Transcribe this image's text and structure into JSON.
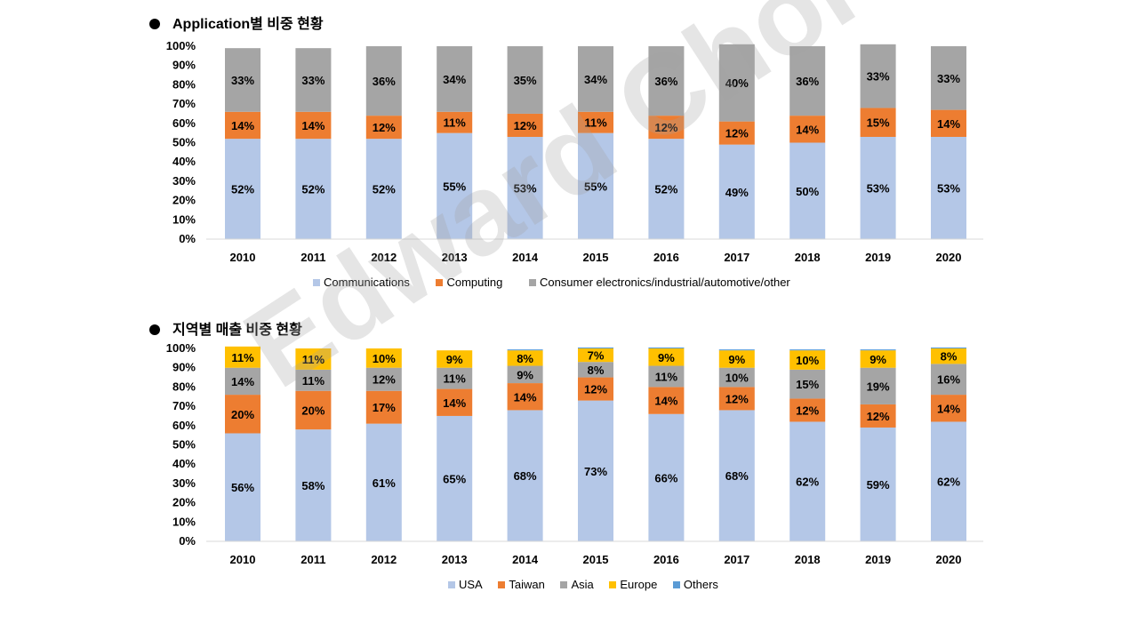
{
  "watermark": "Edward Choi",
  "colors": {
    "communications": "#b4c7e7",
    "computing": "#ed7d31",
    "consumer": "#a5a5a5",
    "usa": "#b4c7e7",
    "taiwan": "#ed7d31",
    "asia": "#a5a5a5",
    "europe": "#ffc000",
    "others": "#5b9bd5",
    "axis": "#d9d9d9",
    "text": "#000000"
  },
  "chart_data": [
    {
      "type": "bar",
      "stacked": true,
      "title": "Application별 비중 현황",
      "categories": [
        "2010",
        "2011",
        "2012",
        "2013",
        "2014",
        "2015",
        "2016",
        "2017",
        "2018",
        "2019",
        "2020"
      ],
      "ylim": [
        0,
        100
      ],
      "yticks": [
        "0%",
        "10%",
        "20%",
        "30%",
        "40%",
        "50%",
        "60%",
        "70%",
        "80%",
        "90%",
        "100%"
      ],
      "grid": false,
      "legend_position": "bottom",
      "series": [
        {
          "name": "Communications",
          "color_key": "communications",
          "values": [
            52,
            52,
            52,
            55,
            53,
            55,
            52,
            49,
            50,
            53,
            53
          ]
        },
        {
          "name": "Computing",
          "color_key": "computing",
          "values": [
            14,
            14,
            12,
            11,
            12,
            11,
            12,
            12,
            14,
            15,
            14
          ]
        },
        {
          "name": "Consumer electronics/industrial/automotive/other",
          "color_key": "consumer",
          "values": [
            33,
            33,
            36,
            34,
            35,
            34,
            36,
            40,
            36,
            33,
            33
          ]
        }
      ]
    },
    {
      "type": "bar",
      "stacked": true,
      "title": "지역별 매출 비중 현황",
      "categories": [
        "2010",
        "2011",
        "2012",
        "2013",
        "2014",
        "2015",
        "2016",
        "2017",
        "2018",
        "2019",
        "2020"
      ],
      "ylim": [
        0,
        100
      ],
      "yticks": [
        "0%",
        "10%",
        "20%",
        "30%",
        "40%",
        "50%",
        "60%",
        "70%",
        "80%",
        "90%",
        "100%"
      ],
      "grid": false,
      "legend_position": "bottom",
      "series": [
        {
          "name": "USA",
          "color_key": "usa",
          "values": [
            56,
            58,
            61,
            65,
            68,
            73,
            66,
            68,
            62,
            59,
            62
          ]
        },
        {
          "name": "Taiwan",
          "color_key": "taiwan",
          "values": [
            20,
            20,
            17,
            14,
            14,
            12,
            14,
            12,
            12,
            12,
            14
          ]
        },
        {
          "name": "Asia",
          "color_key": "asia",
          "values": [
            14,
            11,
            12,
            11,
            9,
            8,
            11,
            10,
            15,
            19,
            16
          ]
        },
        {
          "name": "Europe",
          "color_key": "europe",
          "values": [
            11,
            11,
            10,
            9,
            8,
            7,
            9,
            9,
            10,
            9,
            8
          ]
        },
        {
          "name": "Others",
          "color_key": "others",
          "values": [
            0,
            0,
            0,
            0,
            0.5,
            0.5,
            0.5,
            0.5,
            0.5,
            0.5,
            0.5
          ]
        }
      ]
    }
  ]
}
